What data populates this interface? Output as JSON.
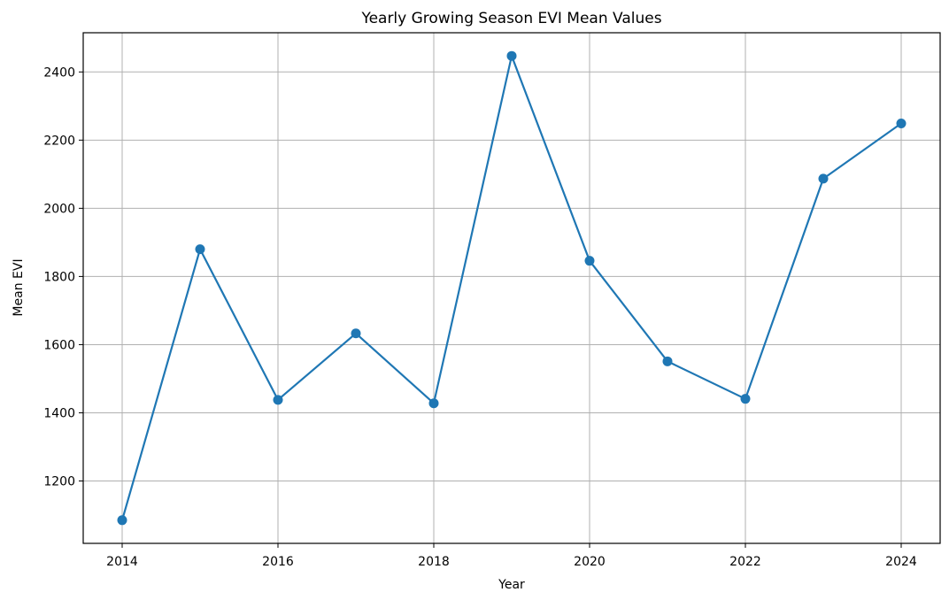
{
  "chart_data": {
    "type": "line",
    "title": "Yearly Growing Season  EVI Mean Values",
    "xlabel": "Year",
    "ylabel": "Mean EVI",
    "x": [
      2014,
      2015,
      2016,
      2017,
      2018,
      2019,
      2020,
      2021,
      2022,
      2023,
      2024
    ],
    "series": [
      {
        "values": [
          1085,
          1880,
          1438,
          1633,
          1428,
          2447,
          1846,
          1551,
          1441,
          2087,
          2249
        ],
        "color": "#1f77b4",
        "marker": "circle"
      }
    ],
    "xticks": [
      "2014",
      "2016",
      "2018",
      "2020",
      "2022",
      "2024"
    ],
    "yticks": [
      "1200",
      "1400",
      "1600",
      "1800",
      "2000",
      "2200",
      "2400"
    ],
    "xlim": [
      2013.5,
      2024.5
    ],
    "ylim": [
      1017,
      2515
    ],
    "grid": true,
    "grid_color": "#b0b0b0"
  }
}
